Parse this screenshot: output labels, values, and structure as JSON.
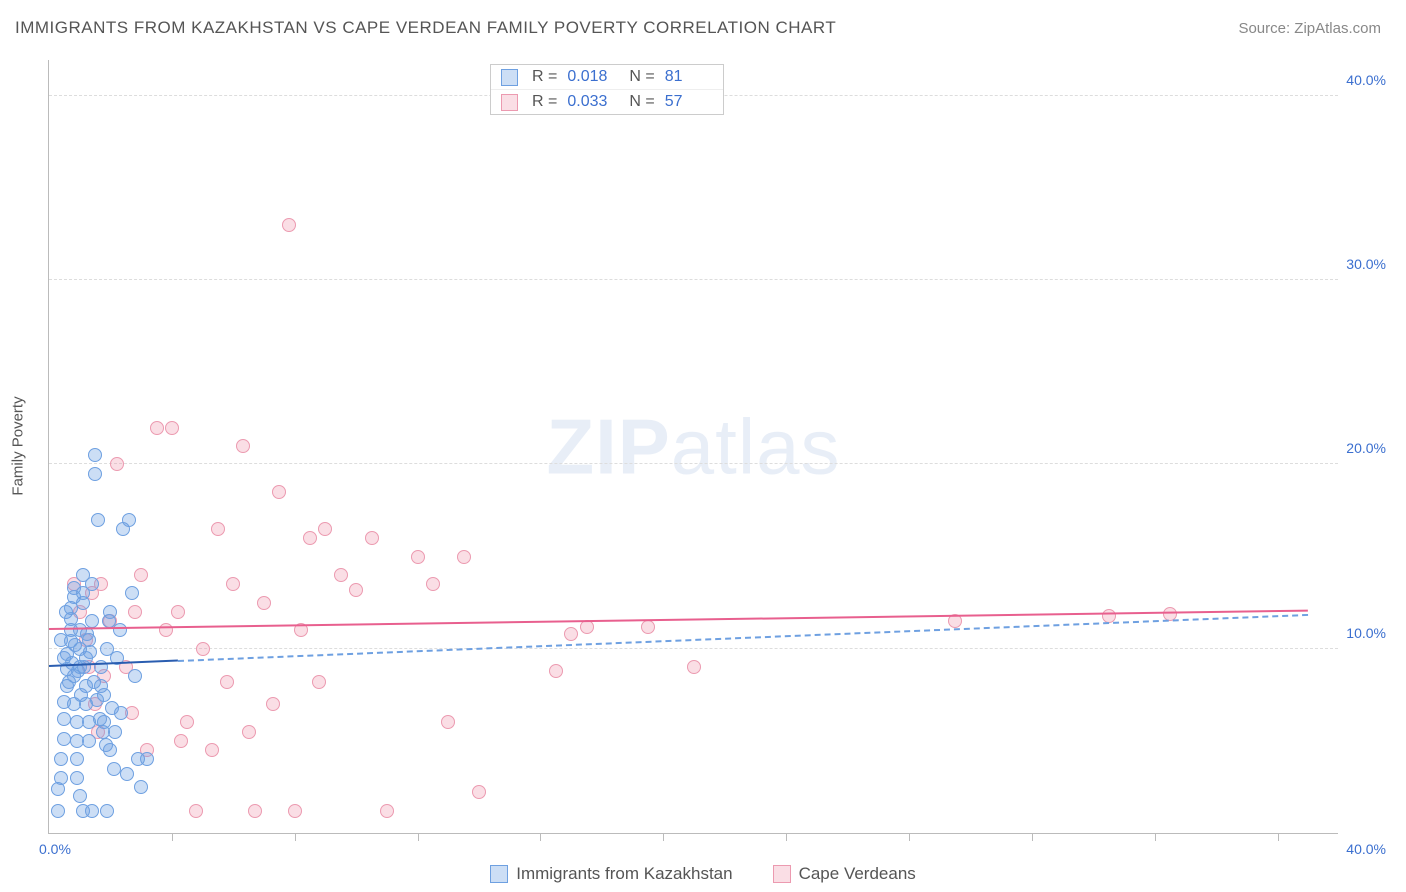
{
  "title": "IMMIGRANTS FROM KAZAKHSTAN VS CAPE VERDEAN FAMILY POVERTY CORRELATION CHART",
  "source": "Source: ZipAtlas.com",
  "watermark_zip": "ZIP",
  "watermark_atlas": "atlas",
  "axis": {
    "y_title": "Family Poverty",
    "ylim": [
      0,
      42
    ],
    "y_ticks": [
      {
        "v": 10,
        "label": "10.0%"
      },
      {
        "v": 20,
        "label": "20.0%"
      },
      {
        "v": 30,
        "label": "30.0%"
      },
      {
        "v": 40,
        "label": "40.0%"
      }
    ],
    "xlim": [
      0,
      42
    ],
    "x_min_label": "0.0%",
    "x_max_label": "40.0%",
    "x_tick_positions": [
      4,
      8,
      12,
      16,
      20,
      24,
      28,
      32,
      36,
      40
    ],
    "grid_color": "#dddddd",
    "label_color": "#3b6fcf"
  },
  "series_a": {
    "name": "Immigrants from Kazakhstan",
    "fill": "rgba(110,160,225,0.35)",
    "stroke": "#6ea0e1",
    "trend_solid_color": "#2a5db0",
    "trend_dashed_color": "#6ea0e1",
    "trend": {
      "x0": 0,
      "y0": 9.0,
      "x1_solid": 4.2,
      "y1_solid": 9.3,
      "x1_dash": 41,
      "y1_dash": 11.8
    },
    "R_label": "R  =",
    "R_value": "0.018",
    "N_label": "N  =",
    "N_value": "81",
    "points": [
      [
        0.3,
        1.2
      ],
      [
        0.3,
        2.4
      ],
      [
        0.4,
        3.0
      ],
      [
        0.4,
        4.0
      ],
      [
        0.5,
        5.1
      ],
      [
        0.5,
        6.2
      ],
      [
        0.5,
        7.1
      ],
      [
        0.6,
        8.0
      ],
      [
        0.6,
        8.9
      ],
      [
        0.6,
        9.7
      ],
      [
        0.7,
        10.4
      ],
      [
        0.7,
        11.0
      ],
      [
        0.7,
        11.6
      ],
      [
        0.7,
        12.2
      ],
      [
        0.8,
        12.8
      ],
      [
        0.8,
        13.3
      ],
      [
        0.8,
        8.5
      ],
      [
        0.8,
        7.0
      ],
      [
        0.9,
        6.0
      ],
      [
        0.9,
        5.0
      ],
      [
        0.9,
        4.0
      ],
      [
        0.9,
        3.0
      ],
      [
        1.0,
        2.0
      ],
      [
        1.0,
        9.0
      ],
      [
        1.0,
        10.0
      ],
      [
        1.0,
        11.0
      ],
      [
        1.1,
        12.5
      ],
      [
        1.1,
        13.0
      ],
      [
        1.1,
        14.0
      ],
      [
        1.2,
        9.5
      ],
      [
        1.2,
        8.0
      ],
      [
        1.2,
        7.0
      ],
      [
        1.3,
        6.0
      ],
      [
        1.3,
        5.0
      ],
      [
        1.3,
        10.5
      ],
      [
        1.4,
        11.5
      ],
      [
        1.4,
        13.5
      ],
      [
        1.5,
        20.5
      ],
      [
        1.5,
        19.5
      ],
      [
        1.6,
        17.0
      ],
      [
        1.7,
        9.0
      ],
      [
        1.7,
        8.0
      ],
      [
        1.8,
        7.5
      ],
      [
        1.8,
        6.0
      ],
      [
        1.9,
        10.0
      ],
      [
        2.0,
        12.0
      ],
      [
        2.0,
        4.5
      ],
      [
        2.1,
        3.5
      ],
      [
        2.2,
        9.5
      ],
      [
        2.3,
        11.0
      ],
      [
        2.4,
        16.5
      ],
      [
        2.6,
        17.0
      ],
      [
        2.7,
        13.0
      ],
      [
        2.8,
        8.5
      ],
      [
        2.9,
        4.0
      ],
      [
        3.0,
        2.5
      ],
      [
        0.4,
        10.5
      ],
      [
        0.5,
        9.5
      ],
      [
        0.55,
        12.0
      ],
      [
        0.65,
        8.2
      ],
      [
        0.75,
        9.2
      ],
      [
        0.85,
        10.2
      ],
      [
        0.95,
        8.8
      ],
      [
        1.05,
        7.5
      ],
      [
        1.15,
        9.0
      ],
      [
        1.25,
        10.8
      ],
      [
        1.35,
        9.8
      ],
      [
        1.45,
        8.2
      ],
      [
        1.55,
        7.2
      ],
      [
        1.65,
        6.2
      ],
      [
        1.75,
        5.5
      ],
      [
        1.85,
        4.8
      ],
      [
        1.95,
        11.5
      ],
      [
        2.15,
        5.5
      ],
      [
        2.35,
        6.5
      ],
      [
        2.55,
        3.2
      ],
      [
        2.05,
        6.8
      ],
      [
        1.1,
        1.2
      ],
      [
        1.4,
        1.2
      ],
      [
        1.9,
        1.2
      ],
      [
        3.2,
        4.0
      ]
    ]
  },
  "series_b": {
    "name": "Cape Verdeans",
    "fill": "rgba(240,145,170,0.30)",
    "stroke": "#ec9ab0",
    "trend_color": "#e85f8e",
    "trend": {
      "x0": 0,
      "y0": 11.0,
      "x1": 41,
      "y1": 12.0
    },
    "R_label": "R  =",
    "R_value": "0.033",
    "N_label": "N  =",
    "N_value": "57",
    "points": [
      [
        0.8,
        13.5
      ],
      [
        1.0,
        12.0
      ],
      [
        1.2,
        10.5
      ],
      [
        1.4,
        13.0
      ],
      [
        1.5,
        7.0
      ],
      [
        1.6,
        5.5
      ],
      [
        1.8,
        8.5
      ],
      [
        2.0,
        11.5
      ],
      [
        2.2,
        20.0
      ],
      [
        2.5,
        9.0
      ],
      [
        2.7,
        6.5
      ],
      [
        3.0,
        14.0
      ],
      [
        3.2,
        4.5
      ],
      [
        3.5,
        22.0
      ],
      [
        4.0,
        22.0
      ],
      [
        4.2,
        12.0
      ],
      [
        4.5,
        6.0
      ],
      [
        4.8,
        1.2
      ],
      [
        5.0,
        10.0
      ],
      [
        5.5,
        16.5
      ],
      [
        6.0,
        13.5
      ],
      [
        6.3,
        21.0
      ],
      [
        6.7,
        1.2
      ],
      [
        7.0,
        12.5
      ],
      [
        7.3,
        7.0
      ],
      [
        7.5,
        18.5
      ],
      [
        7.8,
        33.0
      ],
      [
        8.0,
        1.2
      ],
      [
        8.2,
        11.0
      ],
      [
        8.5,
        16.0
      ],
      [
        9.0,
        16.5
      ],
      [
        9.5,
        14.0
      ],
      [
        10.0,
        13.2
      ],
      [
        10.5,
        16.0
      ],
      [
        11.0,
        1.2
      ],
      [
        12.0,
        15.0
      ],
      [
        12.5,
        13.5
      ],
      [
        13.0,
        6.0
      ],
      [
        13.5,
        15.0
      ],
      [
        14.0,
        2.2
      ],
      [
        16.5,
        8.8
      ],
      [
        17.0,
        10.8
      ],
      [
        17.5,
        11.2
      ],
      [
        19.5,
        11.2
      ],
      [
        21.0,
        9.0
      ],
      [
        29.5,
        11.5
      ],
      [
        34.5,
        11.8
      ],
      [
        36.5,
        11.9
      ],
      [
        1.3,
        9.0
      ],
      [
        1.7,
        13.5
      ],
      [
        2.8,
        12.0
      ],
      [
        3.8,
        11.0
      ],
      [
        4.3,
        5.0
      ],
      [
        5.3,
        4.5
      ],
      [
        5.8,
        8.2
      ],
      [
        6.5,
        5.5
      ],
      [
        8.8,
        8.2
      ]
    ]
  },
  "bottom_legend": {
    "a": "Immigrants from Kazakhstan",
    "b": "Cape Verdeans"
  }
}
